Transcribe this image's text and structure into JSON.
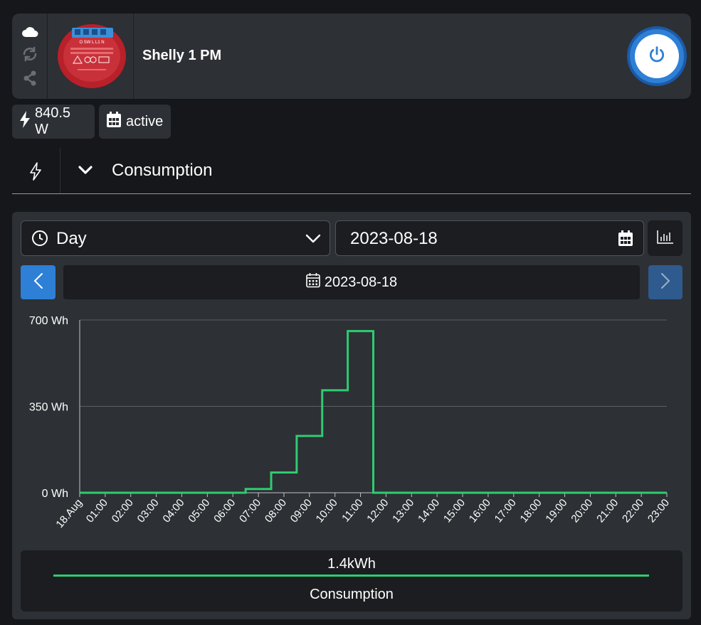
{
  "device": {
    "name": "Shelly 1 PM",
    "icons": [
      "cloud-icon",
      "sync-icon",
      "share-icon"
    ],
    "image_icon": "device-image-icon",
    "power_icon": "power-icon",
    "device_label_text": "O SW L L1 N"
  },
  "status": {
    "power": "840.5 W",
    "schedule": "active"
  },
  "section": {
    "title": "Consumption"
  },
  "controls": {
    "period": "Day",
    "date": "2023-08-18",
    "display_date": "2023-08-18"
  },
  "colors": {
    "accent": "#2e7fd6",
    "series": "#2ecc71",
    "panel": "#2d3034",
    "background": "#15171a"
  },
  "chart_data": {
    "type": "line",
    "step": true,
    "ylim": [
      0,
      700
    ],
    "yticks": [
      0,
      350,
      700
    ],
    "y_tick_labels": [
      "0 Wh",
      "350 Wh",
      "700 Wh"
    ],
    "x": [
      "18.Aug",
      "01:00",
      "02:00",
      "03:00",
      "04:00",
      "05:00",
      "06:00",
      "07:00",
      "08:00",
      "09:00",
      "10:00",
      "11:00",
      "12:00",
      "13:00",
      "14:00",
      "15:00",
      "16:00",
      "17:00",
      "18:00",
      "19:00",
      "20:00",
      "21:00",
      "22:00",
      "23:00"
    ],
    "series": [
      {
        "name": "Consumption",
        "values": [
          0,
          0,
          0,
          0,
          0,
          0,
          0,
          15,
          82,
          230,
          415,
          655,
          0,
          0,
          0,
          0,
          0,
          0,
          0,
          0,
          0,
          0,
          0,
          0
        ]
      }
    ],
    "grid": true,
    "total": "1.4kWh"
  }
}
